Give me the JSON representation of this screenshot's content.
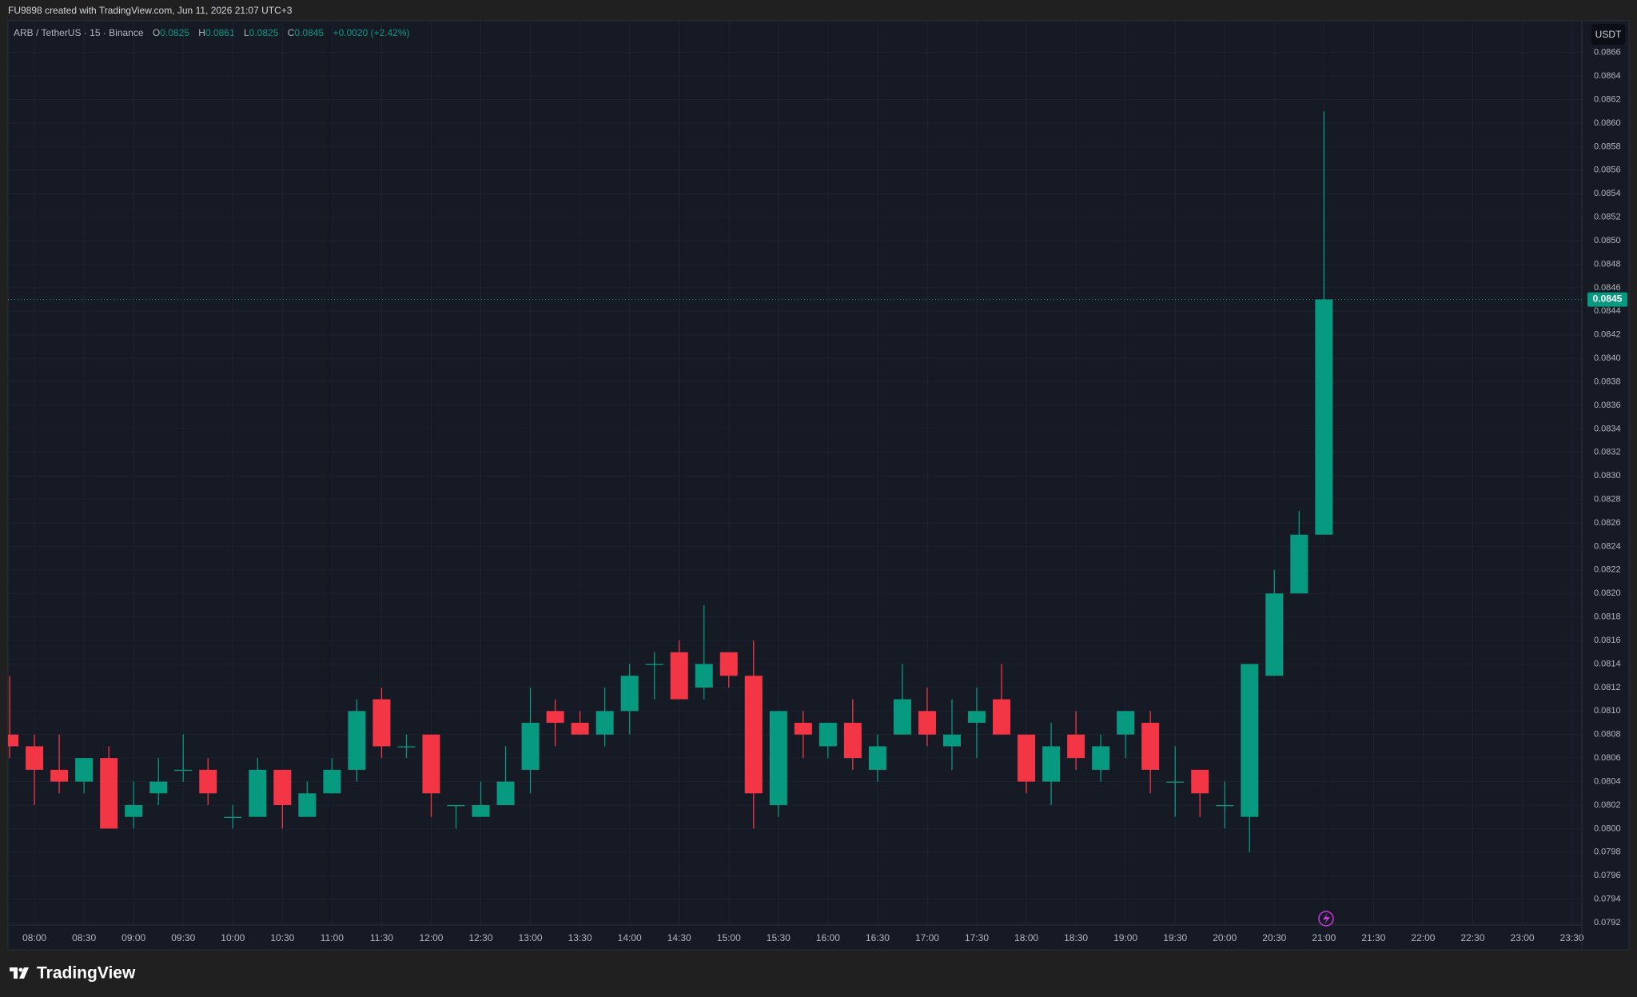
{
  "header": "FU9898 created with TradingView.com, Jun 11, 2026 21:07 UTC+3",
  "footer": "TradingView",
  "chart_data": {
    "type": "candlestick",
    "title": "ARB / TetherUS · 15 · Binance",
    "ohlc_labels": [
      "O",
      "H",
      "L",
      "C"
    ],
    "change": "+0.0020 (+2.42%)",
    "currency": "USDT",
    "up_color": "#089981",
    "down_color": "#f23645",
    "grid": true,
    "x": [
      "07:45",
      "08:00",
      "08:15",
      "08:30",
      "08:45",
      "09:00",
      "09:15",
      "09:30",
      "09:45",
      "10:00",
      "10:15",
      "10:30",
      "10:45",
      "11:00",
      "11:15",
      "11:30",
      "11:45",
      "12:00",
      "12:15",
      "12:30",
      "12:45",
      "13:00",
      "13:15",
      "13:30",
      "13:45",
      "14:00",
      "14:15",
      "14:30",
      "14:45",
      "15:00",
      "15:15",
      "15:30",
      "15:45",
      "16:00",
      "16:15",
      "16:30",
      "16:45",
      "17:00",
      "17:15",
      "17:30",
      "17:45",
      "18:00",
      "18:15",
      "18:30",
      "18:45",
      "19:00",
      "19:15",
      "19:30",
      "19:45",
      "20:00",
      "20:15",
      "20:30",
      "20:45",
      "21:00"
    ],
    "open": [
      0.0808,
      0.0807,
      0.0805,
      0.0804,
      0.0806,
      0.0801,
      0.0803,
      0.0805,
      0.0805,
      0.0801,
      0.0801,
      0.0805,
      0.0801,
      0.0803,
      0.0805,
      0.0811,
      0.0807,
      0.0808,
      0.0802,
      0.0801,
      0.0802,
      0.0805,
      0.081,
      0.0809,
      0.0808,
      0.081,
      0.0814,
      0.0815,
      0.0812,
      0.0815,
      0.0813,
      0.0802,
      0.0809,
      0.0807,
      0.0809,
      0.0805,
      0.0808,
      0.081,
      0.0807,
      0.0809,
      0.0811,
      0.0808,
      0.0804,
      0.0808,
      0.0805,
      0.0808,
      0.0809,
      0.0804,
      0.0805,
      0.0802,
      0.0801,
      0.0813,
      0.082,
      0.0825
    ],
    "high": [
      0.0813,
      0.0808,
      0.0808,
      0.0806,
      0.0807,
      0.0804,
      0.0806,
      0.0808,
      0.0806,
      0.0802,
      0.0806,
      0.0805,
      0.0804,
      0.0806,
      0.0811,
      0.0812,
      0.0808,
      0.0808,
      0.0802,
      0.0804,
      0.0807,
      0.0812,
      0.0811,
      0.081,
      0.0812,
      0.0814,
      0.0815,
      0.0816,
      0.0819,
      0.0815,
      0.0816,
      0.081,
      0.081,
      0.0809,
      0.0811,
      0.0808,
      0.0814,
      0.0812,
      0.0811,
      0.0812,
      0.0814,
      0.0808,
      0.0809,
      0.081,
      0.0808,
      0.081,
      0.081,
      0.0807,
      0.0805,
      0.0804,
      0.0814,
      0.0822,
      0.0827,
      0.0861
    ],
    "low": [
      0.0806,
      0.0802,
      0.0803,
      0.0803,
      0.08,
      0.08,
      0.0802,
      0.0804,
      0.0802,
      0.08,
      0.0801,
      0.08,
      0.0801,
      0.0803,
      0.0804,
      0.0806,
      0.0806,
      0.0801,
      0.08,
      0.0801,
      0.0802,
      0.0803,
      0.0807,
      0.0808,
      0.0807,
      0.0808,
      0.0811,
      0.0811,
      0.0811,
      0.0812,
      0.08,
      0.0801,
      0.0806,
      0.0806,
      0.0805,
      0.0804,
      0.0808,
      0.0807,
      0.0805,
      0.0806,
      0.0808,
      0.0803,
      0.0802,
      0.0805,
      0.0804,
      0.0806,
      0.0803,
      0.0801,
      0.0801,
      0.08,
      0.0798,
      0.0813,
      0.082,
      0.0825
    ],
    "close": [
      0.0807,
      0.0805,
      0.0804,
      0.0806,
      0.08,
      0.0802,
      0.0804,
      0.0805,
      0.0803,
      0.0801,
      0.0805,
      0.0802,
      0.0803,
      0.0805,
      0.081,
      0.0807,
      0.0807,
      0.0803,
      0.0802,
      0.0802,
      0.0804,
      0.0809,
      0.0809,
      0.0808,
      0.081,
      0.0813,
      0.0814,
      0.0811,
      0.0814,
      0.0813,
      0.0803,
      0.081,
      0.0808,
      0.0809,
      0.0806,
      0.0807,
      0.0811,
      0.0808,
      0.0808,
      0.081,
      0.0808,
      0.0804,
      0.0807,
      0.0806,
      0.0807,
      0.081,
      0.0805,
      0.0804,
      0.0803,
      0.0802,
      0.0814,
      0.082,
      0.0825,
      0.0845
    ],
    "xlim": [
      "07:44",
      "23:36"
    ],
    "xticks": [
      "08:00",
      "08:30",
      "09:00",
      "09:30",
      "10:00",
      "10:30",
      "11:00",
      "11:30",
      "12:00",
      "12:30",
      "13:00",
      "13:30",
      "14:00",
      "14:30",
      "15:00",
      "15:30",
      "16:00",
      "16:30",
      "17:00",
      "17:30",
      "18:00",
      "18:30",
      "19:00",
      "19:30",
      "20:00",
      "20:30",
      "21:00",
      "21:30",
      "22:00",
      "22:30",
      "23:00",
      "23:30"
    ],
    "ylim": [
      0.07918,
      0.08687
    ],
    "yticks": [
      0.0792,
      0.0794,
      0.0796,
      0.0798,
      {
        "value": 0.08,
        "label": "0.0800"
      },
      0.0802,
      0.0804,
      0.0806,
      0.0808,
      {
        "value": 0.081,
        "label": "0.0810"
      },
      0.0812,
      0.0814,
      0.0816,
      0.0818,
      {
        "value": 0.082,
        "label": "0.0820"
      },
      0.0822,
      0.0824,
      0.0826,
      0.0828,
      {
        "value": 0.083,
        "label": "0.0830"
      },
      0.0832,
      0.0834,
      0.0836,
      0.0838,
      {
        "value": 0.084,
        "label": "0.0840"
      },
      0.0842,
      0.0844,
      0.0846,
      0.0848,
      {
        "value": 0.085,
        "label": "0.0850"
      },
      0.0852,
      0.0854,
      0.0856,
      0.0858,
      {
        "value": 0.086,
        "label": "0.0860"
      },
      0.0862,
      0.0864,
      0.0866
    ]
  }
}
